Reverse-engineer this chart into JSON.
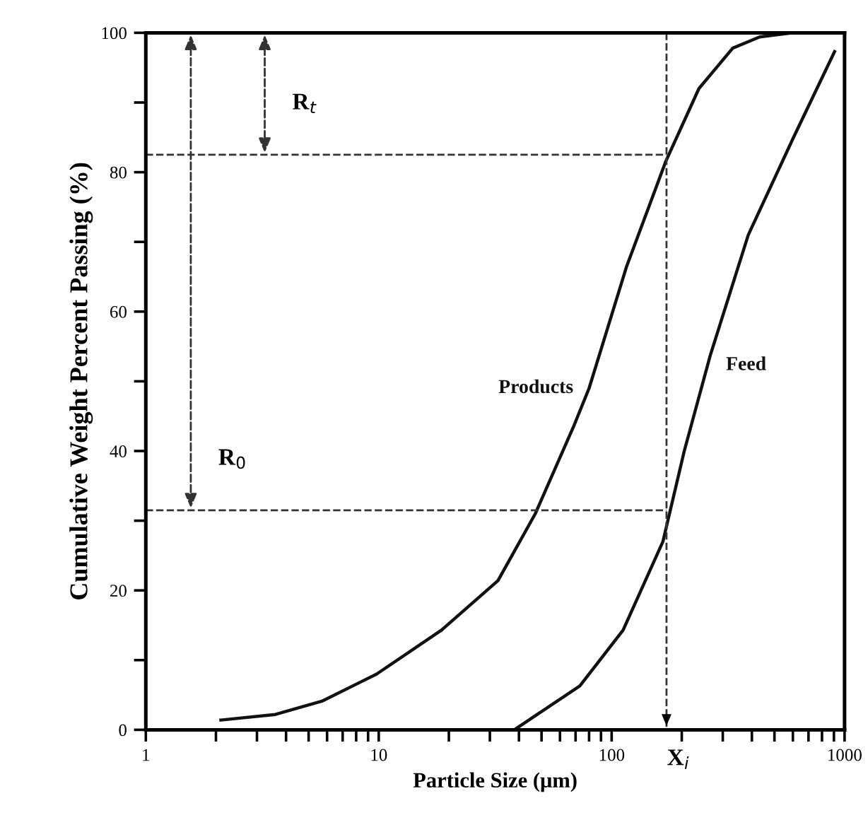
{
  "chart_data": {
    "type": "line",
    "xlabel": "Particle Size (μm)",
    "ylabel": "Cumulative Weight Percent Passing (%)",
    "log": "x",
    "xlim": [
      1,
      1000
    ],
    "ylim": [
      0,
      100
    ],
    "xticks": [
      1,
      {
        "value": 2,
        "label": null
      },
      {
        "value": 3,
        "label": null
      },
      {
        "value": 4,
        "label": null
      },
      {
        "value": 5,
        "label": null
      },
      {
        "value": 6,
        "label": null
      },
      {
        "value": 7,
        "label": null
      },
      {
        "value": 8,
        "label": null
      },
      {
        "value": 9,
        "label": null
      },
      10,
      {
        "value": 20,
        "label": null
      },
      {
        "value": 30,
        "label": null
      },
      {
        "value": 40,
        "label": null
      },
      {
        "value": 50,
        "label": null
      },
      {
        "value": 60,
        "label": null
      },
      {
        "value": 70,
        "label": null
      },
      {
        "value": 80,
        "label": null
      },
      {
        "value": 90,
        "label": null
      },
      100,
      {
        "value": 200,
        "label": null
      },
      {
        "value": 300,
        "label": null
      },
      {
        "value": 400,
        "label": null
      },
      {
        "value": 500,
        "label": null
      },
      {
        "value": 600,
        "label": null
      },
      {
        "value": 700,
        "label": null
      },
      {
        "value": 800,
        "label": null
      },
      {
        "value": 900,
        "label": null
      },
      1000
    ],
    "yticks": [
      0,
      {
        "value": 10,
        "label": null
      },
      20,
      {
        "value": 30,
        "label": null
      },
      40,
      {
        "value": 50,
        "label": null
      },
      60,
      {
        "value": 70,
        "label": null
      },
      80,
      {
        "value": 90,
        "label": null
      },
      100
    ],
    "grid": false,
    "legend": false,
    "marker": "none",
    "line_style": "solid",
    "series": [
      {
        "name": "Products",
        "color": "#111111",
        "x": [
          2.1,
          3.6,
          5.7,
          9.8,
          18.6,
          32.5,
          47,
          69,
          80,
          116,
          171,
          237,
          331,
          432,
          600,
          1000
        ],
        "values": [
          1.4,
          2.2,
          4.1,
          8,
          14.3,
          21.4,
          31,
          43.7,
          49,
          66.5,
          81.6,
          92,
          97.8,
          99.4,
          100,
          100
        ]
      },
      {
        "name": "Feed",
        "color": "#111111",
        "x": [
          39,
          73,
          112,
          166,
          205,
          265,
          386,
          604,
          906
        ],
        "values": [
          0.2,
          6.3,
          14.3,
          27,
          40,
          53.7,
          71,
          85,
          97.3
        ]
      }
    ],
    "ref_lines": [
      {
        "axis": "y",
        "value": 82.5,
        "line_style": "dashed",
        "color": "#333333"
      },
      {
        "axis": "y",
        "value": 31.5,
        "line_style": "dashed",
        "color": "#333333"
      },
      {
        "axis": "x",
        "value": 172,
        "label": "X$_{i}$",
        "line_style": "dashed",
        "color": "#333333"
      }
    ],
    "annotations": [
      {
        "text": "R$_{t}$",
        "x": 3.24,
        "y": 82.5
      },
      {
        "text": "R$_{0}$",
        "x": 1.56,
        "y": 31.5
      }
    ]
  }
}
